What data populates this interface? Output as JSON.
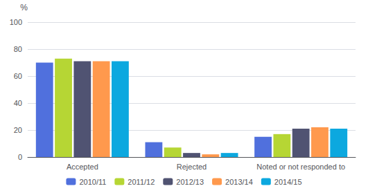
{
  "chart_data": {
    "type": "bar",
    "categories": [
      "Accepted",
      "Rejected",
      "Noted or not responded to"
    ],
    "series": [
      {
        "name": "2010/11",
        "values": [
          70,
          11,
          15
        ]
      },
      {
        "name": "2011/12",
        "values": [
          73,
          7,
          17
        ]
      },
      {
        "name": "2012/13",
        "values": [
          71,
          3,
          21
        ]
      },
      {
        "name": "2013/14",
        "values": [
          71,
          2,
          22
        ]
      },
      {
        "name": "2014/15",
        "values": [
          71,
          3,
          21
        ]
      }
    ],
    "ylabel": "%",
    "ylim": [
      0,
      100
    ],
    "yticks": [
      0,
      20,
      40,
      60,
      80,
      100
    ],
    "grid": true,
    "legend": "bottom"
  }
}
